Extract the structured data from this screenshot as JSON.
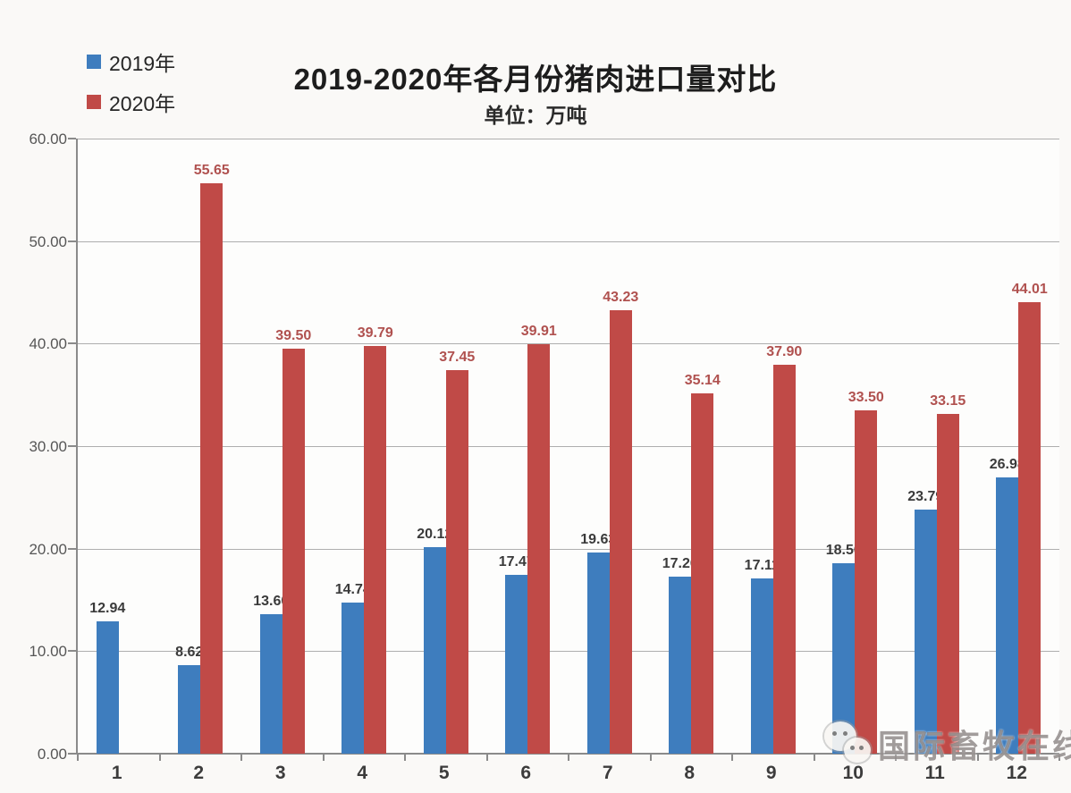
{
  "title": "2019-2020年各月份猪肉进口量对比",
  "subtitle": "单位：万吨",
  "legend": [
    {
      "label": "2019年",
      "color": "#3E7DBE",
      "icon": "blue-square-swatch"
    },
    {
      "label": "2020年",
      "color": "#C04A47",
      "icon": "red-square-swatch"
    }
  ],
  "watermark": {
    "icon": "wechat-icon",
    "text": "国际畜牧在线"
  },
  "colors": {
    "bar_2019": "#3E7DBE",
    "bar_2020": "#C04A47",
    "label_2019": "#3A3A3A",
    "label_2020": "#B0514F",
    "gridline": "#AEAEAE",
    "axis": "#8A8A8A"
  },
  "chart_data": {
    "type": "bar",
    "title": "2019-2020年各月份猪肉进口量对比",
    "unit_label": "单位：万吨",
    "categories": [
      "1",
      "2",
      "3",
      "4",
      "5",
      "6",
      "7",
      "8",
      "9",
      "10",
      "11",
      "12"
    ],
    "series": [
      {
        "name": "2019年",
        "color": "#3E7DBE",
        "label_color": "#3A3A3A",
        "values": [
          12.94,
          8.62,
          13.6,
          14.74,
          20.12,
          17.47,
          19.63,
          17.26,
          17.11,
          18.56,
          23.79,
          26.98
        ],
        "labels": [
          "12.94",
          "8.62",
          "13.60",
          "14.74",
          "20.12",
          "17.47",
          "19.63",
          "17.26",
          "17.11",
          "18.56",
          "23.79",
          "26.98"
        ]
      },
      {
        "name": "2020年",
        "color": "#C04A47",
        "label_color": "#B0514F",
        "values": [
          null,
          55.65,
          39.5,
          39.79,
          37.45,
          39.91,
          43.23,
          35.14,
          37.9,
          33.5,
          33.15,
          44.01
        ],
        "labels": [
          null,
          "55.65",
          "39.50",
          "39.79",
          "37.45",
          "39.91",
          "43.23",
          "35.14",
          "37.90",
          "33.50",
          "33.15",
          "44.01"
        ]
      }
    ],
    "xlabel": "",
    "ylabel": "万吨",
    "ylim": [
      0,
      60
    ],
    "ytick_step": 10,
    "ytick_labels": [
      "0.00",
      "10.00",
      "20.00",
      "30.00",
      "40.00",
      "50.00",
      "60.00"
    ],
    "grid": true,
    "legend_position": "top-left"
  }
}
